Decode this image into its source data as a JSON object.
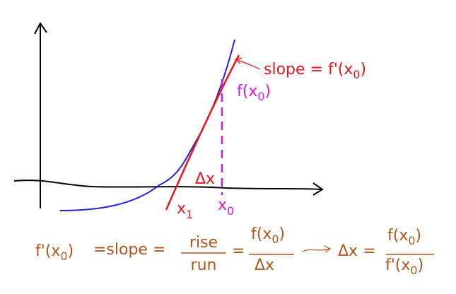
{
  "graph_labels": {
    "slope": [
      "slope = f'(x",
      "0",
      ")"
    ],
    "fx0": [
      "f(x",
      "0",
      ")"
    ],
    "dx": "Δx",
    "x1": [
      "x",
      "1"
    ],
    "x0": [
      "x",
      "0"
    ]
  },
  "formula": {
    "lhs": [
      "f'(x",
      "0",
      ")"
    ],
    "eq_slope": "=slope =",
    "rise": "rise",
    "run": "run",
    "eq": "=",
    "num1": [
      "f(x",
      "0",
      ")"
    ],
    "den1": "Δx",
    "dx_eq": "Δx =",
    "num2": [
      "f(x",
      "0",
      ")"
    ],
    "den2": [
      "f'(x",
      "0",
      ")"
    ]
  }
}
